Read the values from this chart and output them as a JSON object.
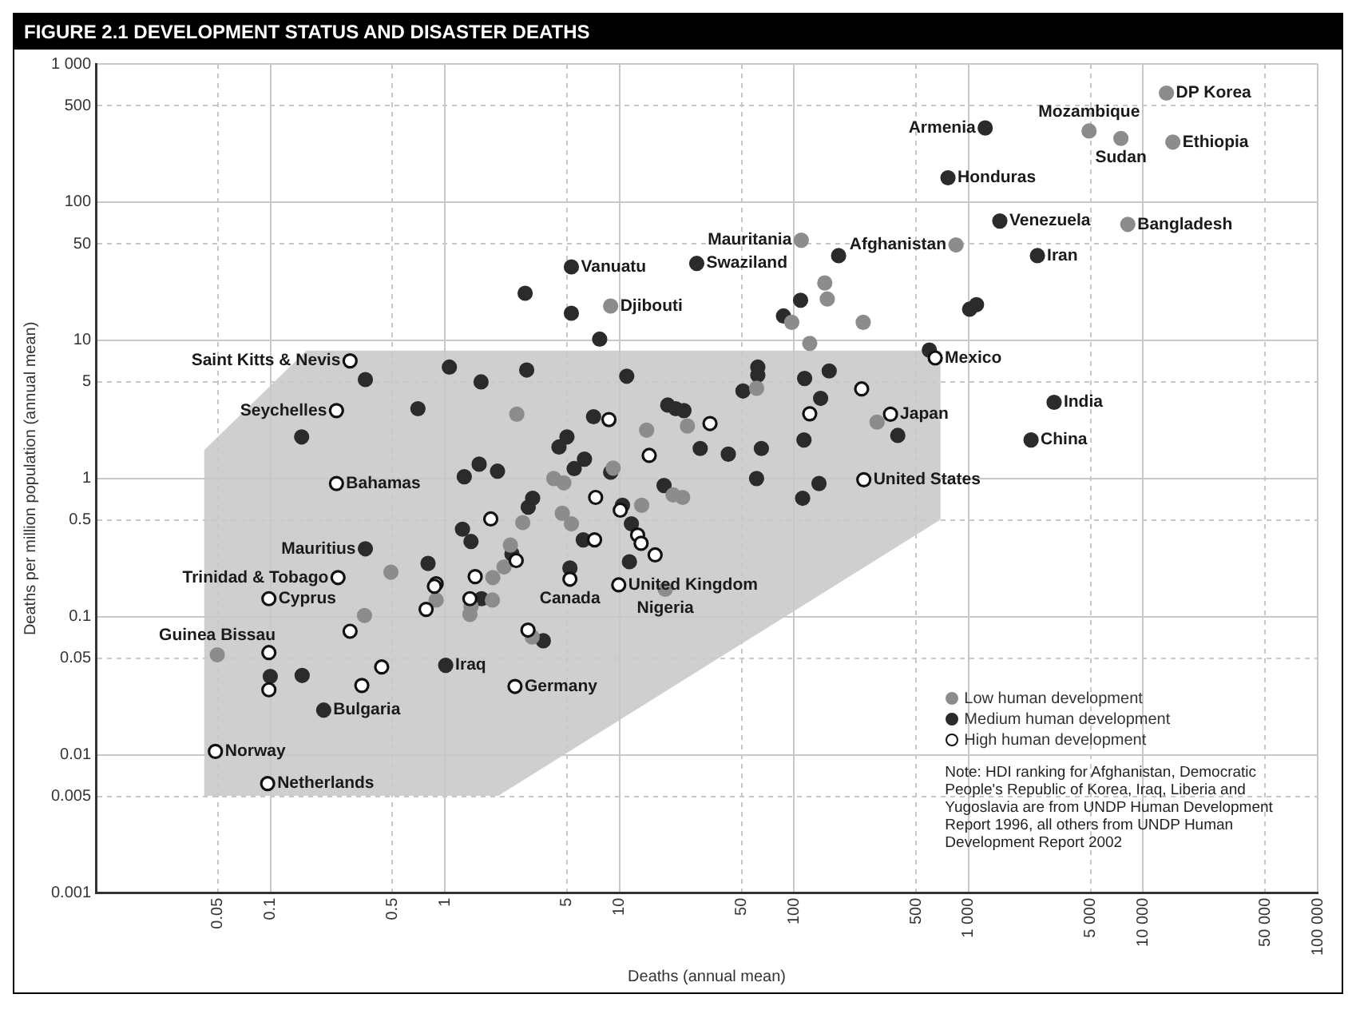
{
  "chart_data": {
    "type": "scatter",
    "title": "FIGURE 2.1 DEVELOPMENT STATUS AND DISASTER DEATHS",
    "xlabel": "Deaths (annual mean)",
    "ylabel": "Deaths per million population (annual mean)",
    "log": "xy",
    "grid": true,
    "legend": "bottom right",
    "marker": "circle",
    "xlim": [
      0.01,
      100000
    ],
    "ylim": [
      0.001,
      1000
    ],
    "xticks": [
      0.05,
      0.1,
      0.5,
      1,
      5,
      10,
      50,
      100,
      500,
      {
        "value": 1000,
        "label": "1 000"
      },
      {
        "value": 5000,
        "label": "5 000"
      },
      {
        "value": 10000,
        "label": "10 000"
      },
      {
        "value": 50000,
        "label": "50 000"
      },
      {
        "value": 100000,
        "label": "100 000"
      }
    ],
    "yticks": [
      0.001,
      0.005,
      0.01,
      0.05,
      0.1,
      0.5,
      1,
      5,
      10,
      50,
      100,
      500,
      {
        "value": 1000,
        "label": "1 000"
      }
    ],
    "series": [
      {
        "name": "Low human development",
        "color": "#8c8c8c",
        "x": [
          13600,
          4900,
          7460,
          14800,
          8170,
          847,
          110,
          150,
          155,
          97,
          249,
          123,
          8.9,
          299,
          61,
          24.5,
          14.3,
          9.2,
          20.3,
          23,
          13.4,
          18.3,
          2.58,
          4.2,
          4.8,
          2.79,
          4.7,
          5.3,
          2.37,
          2.18,
          0.49,
          1.88,
          0.89,
          1.87,
          1.41,
          1.39,
          0.346,
          3.16,
          0.0496
        ],
        "values": [
          615,
          327,
          289,
          272,
          69,
          49,
          53,
          26,
          19.9,
          13.5,
          13.5,
          9.5,
          17.7,
          2.56,
          4.5,
          2.4,
          2.24,
          1.19,
          0.76,
          0.73,
          0.64,
          0.158,
          2.92,
          1.0,
          0.93,
          0.48,
          0.56,
          0.47,
          0.33,
          0.229,
          0.21,
          0.192,
          0.132,
          0.132,
          0.119,
          0.104,
          0.102,
          0.0714,
          0.053
        ]
      },
      {
        "name": "Medium human development",
        "color": "#2b2b2b",
        "x": [
          1245,
          762,
          1510,
          2480,
          180,
          27.7,
          5.3,
          7.7,
          109,
          87,
          1014,
          1110,
          596,
          3090,
          2280,
          393,
          115,
          159,
          142,
          114,
          139,
          112,
          61,
          65,
          42,
          29,
          62,
          62,
          51,
          11,
          18.9,
          21,
          23.4,
          7.1,
          8.9,
          18,
          10.4,
          11.7,
          11.4,
          0.35,
          1.06,
          1.61,
          2.94,
          2.88,
          5.3,
          0.7,
          0.151,
          5.0,
          4.5,
          6.3,
          5.5,
          1.29,
          1.57,
          2.0,
          3.18,
          3.0,
          6.2,
          1.26,
          1.41,
          2.42,
          0.8,
          0.35,
          1.62,
          5.2,
          3.66,
          0.0998,
          0.152,
          0.202,
          1.01
        ],
        "values": [
          344,
          150,
          73,
          41,
          41,
          36,
          34,
          10.2,
          19.5,
          15,
          16.8,
          18.1,
          8.5,
          3.56,
          1.9,
          2.05,
          5.3,
          6.0,
          3.8,
          1.9,
          0.92,
          0.72,
          1.0,
          1.65,
          1.5,
          1.65,
          6.4,
          5.6,
          4.3,
          5.5,
          3.4,
          3.2,
          3.1,
          2.8,
          1.11,
          0.89,
          0.64,
          0.47,
          0.25,
          5.2,
          6.4,
          5.0,
          6.1,
          21.9,
          15.7,
          3.2,
          2.0,
          2.0,
          1.69,
          1.38,
          1.18,
          1.03,
          1.27,
          1.13,
          0.72,
          0.62,
          0.36,
          0.43,
          0.35,
          0.285,
          0.243,
          0.31,
          0.135,
          0.225,
          0.067,
          0.037,
          0.0376,
          0.0211,
          0.0445
        ]
      },
      {
        "name": "High human development",
        "color": "#111111",
        "x": [
          644,
          357,
          251,
          244,
          123,
          33,
          8.7,
          14.8,
          7.3,
          10.1,
          12.7,
          13.3,
          16,
          7.2,
          9.9,
          0.286,
          0.239,
          0.239,
          1.83,
          2.56,
          0.89,
          0.87,
          1.49,
          0.244,
          0.098,
          0.78,
          1.39,
          5.2,
          0.286,
          2.99,
          0.098,
          0.098,
          0.334,
          0.434,
          2.52,
          0.0484,
          0.0964
        ],
        "values": [
          7.45,
          2.92,
          0.98,
          4.45,
          2.94,
          2.5,
          2.67,
          1.47,
          0.73,
          0.59,
          0.39,
          0.34,
          0.28,
          0.36,
          0.17,
          7.1,
          3.1,
          0.92,
          0.51,
          0.255,
          0.173,
          0.166,
          0.195,
          0.192,
          0.135,
          0.113,
          0.135,
          0.187,
          0.0785,
          0.08,
          0.055,
          0.0296,
          0.0318,
          0.0433,
          0.0313,
          0.0106,
          0.0062
        ]
      }
    ],
    "annotations": [
      {
        "text": "DP Korea",
        "x": 13600,
        "y": 615
      },
      {
        "text": "Mozambique",
        "x": 4900,
        "y": 327
      },
      {
        "text": "Sudan",
        "x": 7460,
        "y": 289
      },
      {
        "text": "Ethiopia",
        "x": 14800,
        "y": 272
      },
      {
        "text": "Armenia",
        "x": 1245,
        "y": 344
      },
      {
        "text": "Honduras",
        "x": 762,
        "y": 150
      },
      {
        "text": "Venezuela",
        "x": 1510,
        "y": 73
      },
      {
        "text": "Bangladesh",
        "x": 8170,
        "y": 69
      },
      {
        "text": "Afghanistan",
        "x": 847,
        "y": 49
      },
      {
        "text": "Iran",
        "x": 2480,
        "y": 41
      },
      {
        "text": "Mauritania",
        "x": 110,
        "y": 53
      },
      {
        "text": "Swaziland",
        "x": 27.7,
        "y": 36
      },
      {
        "text": "Vanuatu",
        "x": 5.3,
        "y": 34
      },
      {
        "text": "Djibouti",
        "x": 8.9,
        "y": 17.7
      },
      {
        "text": "Mexico",
        "x": 644,
        "y": 7.45
      },
      {
        "text": "Japan",
        "x": 357,
        "y": 2.92
      },
      {
        "text": "India",
        "x": 3090,
        "y": 3.56
      },
      {
        "text": "China",
        "x": 2280,
        "y": 1.9
      },
      {
        "text": "United States",
        "x": 251,
        "y": 0.98
      },
      {
        "text": "Saint Kitts & Nevis",
        "x": 0.286,
        "y": 7.1
      },
      {
        "text": "Seychelles",
        "x": 0.239,
        "y": 3.1
      },
      {
        "text": "Bahamas",
        "x": 0.239,
        "y": 0.92
      },
      {
        "text": "Mauritius",
        "x": 0.35,
        "y": 0.31
      },
      {
        "text": "Trinidad & Tobago",
        "x": 0.244,
        "y": 0.192
      },
      {
        "text": "Cyprus",
        "x": 0.098,
        "y": 0.135
      },
      {
        "text": "Canada",
        "x": 5.2,
        "y": 0.187
      },
      {
        "text": "United Kingdom",
        "x": 9.9,
        "y": 0.17
      },
      {
        "text": "Nigeria",
        "x": 18.3,
        "y": 0.158
      },
      {
        "text": "Guinea Bissau",
        "x": 0.0496,
        "y": 0.053
      },
      {
        "text": "Iraq",
        "x": 1.01,
        "y": 0.0445
      },
      {
        "text": "Germany",
        "x": 2.52,
        "y": 0.0313
      },
      {
        "text": "Bulgaria",
        "x": 0.202,
        "y": 0.0211
      },
      {
        "text": "Norway",
        "x": 0.0484,
        "y": 0.0106
      },
      {
        "text": "Netherlands",
        "x": 0.0964,
        "y": 0.0062
      },
      "Note: HDI ranking for Afghanistan, Democratic People's Republic of Korea, Iraq, Liberia and Yugoslavia are from UNDP Human Development Report 1996, all others from UNDP Human Development Report 2002"
    ]
  }
}
